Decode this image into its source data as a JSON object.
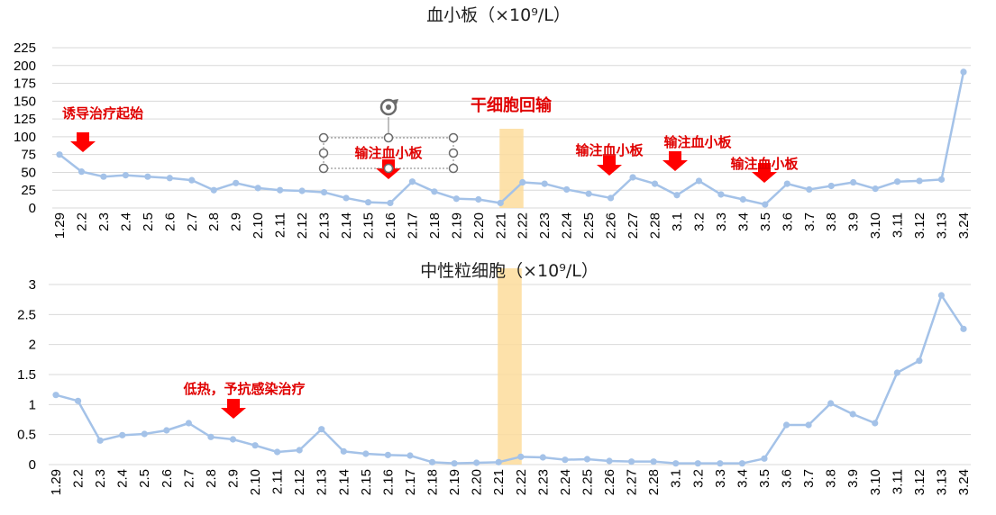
{
  "chart_data": [
    {
      "type": "line",
      "title": "血小板（×10⁹/L）",
      "categories": [
        "1.29",
        "2.2",
        "2.3",
        "2.4",
        "2.5",
        "2.6",
        "2.7",
        "2.8",
        "2.9",
        "2.10",
        "2.11",
        "2.12",
        "2.13",
        "2.14",
        "2.15",
        "2.16",
        "2.17",
        "2.18",
        "2.19",
        "2.20",
        "2.21",
        "2.22",
        "2.23",
        "2.24",
        "2.25",
        "2.26",
        "2.27",
        "2.28",
        "3.1",
        "3.2",
        "3.3",
        "3.4",
        "3.5",
        "3.6",
        "3.7",
        "3.8",
        "3.9",
        "3.10",
        "3.11",
        "3.12",
        "3.13",
        "3.24"
      ],
      "series": [
        {
          "values": [
            75,
            51,
            44,
            46,
            44,
            42,
            39,
            25,
            35,
            28,
            25,
            24,
            22,
            14,
            8,
            7,
            37,
            23,
            13,
            12,
            7,
            36,
            34,
            26,
            20,
            14,
            43,
            34,
            18,
            38,
            19,
            12,
            5,
            34,
            26,
            31,
            36,
            27,
            37,
            38,
            40,
            191
          ],
          "color": "#a4c2e8"
        }
      ],
      "ylim": [
        0,
        225
      ],
      "yticks": [
        "0",
        "25",
        "50",
        "75",
        "100",
        "125",
        "150",
        "175",
        "200",
        "225"
      ],
      "grid": true,
      "annotations": [
        {
          "text": "诱导治疗起始",
          "arrow_at": "2.2"
        },
        {
          "text": "输注血小板",
          "arrow_at": "2.16"
        },
        {
          "text": "输注血小板",
          "arrow_at": "2.26"
        },
        {
          "text": "输注血小板",
          "arrow_at": "3.1"
        },
        {
          "text": "输注血小板",
          "arrow_at": "3.5"
        }
      ],
      "highlight_band": {
        "label": "干细胞回输",
        "from": "2.21",
        "to": "2.22",
        "color": "#fddc9b"
      }
    },
    {
      "type": "line",
      "title": "中性粒细胞（×10⁹/L）",
      "categories": [
        "1.29",
        "2.2",
        "2.3",
        "2.4",
        "2.5",
        "2.6",
        "2.7",
        "2.8",
        "2.9",
        "2.10",
        "2.11",
        "2.12",
        "2.13",
        "2.14",
        "2.15",
        "2.16",
        "2.17",
        "2.18",
        "2.19",
        "2.20",
        "2.21",
        "2.22",
        "2.23",
        "2.24",
        "2.25",
        "2.26",
        "2.27",
        "2.28",
        "3.1",
        "3.2",
        "3.3",
        "3.4",
        "3.5",
        "3.6",
        "3.7",
        "3.8",
        "3.9",
        "3.10",
        "3.11",
        "3.12",
        "3.13",
        "3.24"
      ],
      "series": [
        {
          "values": [
            1.16,
            1.06,
            0.4,
            0.49,
            0.51,
            0.57,
            0.69,
            0.46,
            0.42,
            0.32,
            0.21,
            0.24,
            0.59,
            0.22,
            0.18,
            0.16,
            0.15,
            0.04,
            0.02,
            0.03,
            0.04,
            0.13,
            0.12,
            0.08,
            0.09,
            0.06,
            0.05,
            0.05,
            0.02,
            0.02,
            0.02,
            0.02,
            0.1,
            0.66,
            0.66,
            1.02,
            0.84,
            0.69,
            1.53,
            1.73,
            2.82,
            2.26
          ],
          "color": "#a4c2e8"
        }
      ],
      "ylim": [
        0,
        3
      ],
      "yticks": [
        "0",
        "0.5",
        "1",
        "1.5",
        "2",
        "2.5",
        "3"
      ],
      "grid": true,
      "annotations": [
        {
          "text": "低热，予抗感染治疗",
          "arrow_at": "2.9"
        }
      ],
      "highlight_band": {
        "from": "2.21",
        "to": "2.22",
        "color": "#fddc9b"
      }
    }
  ]
}
